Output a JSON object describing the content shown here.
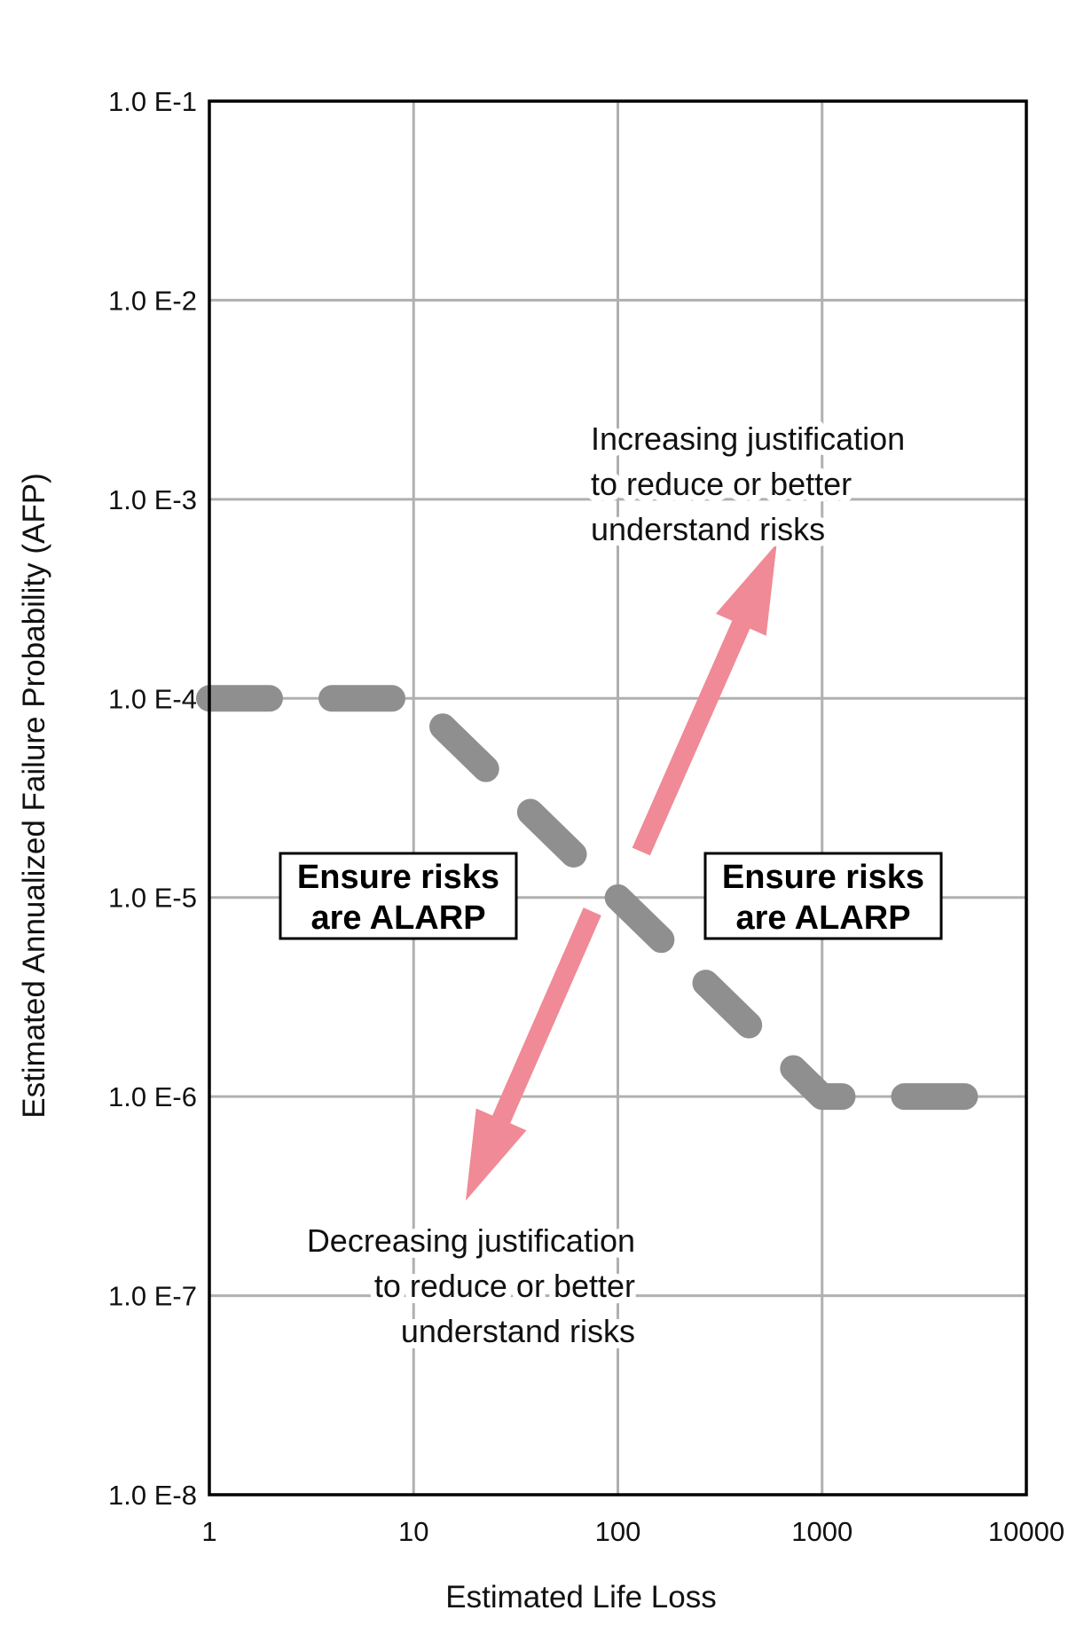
{
  "chart_data": {
    "type": "line",
    "x_scale": "log",
    "y_scale": "log",
    "xlabel": "Estimated Life Loss",
    "ylabel": "Estimated Annualized Failure Probability (AFP)",
    "xlim": [
      1,
      10000
    ],
    "ylim": [
      1e-08,
      0.1
    ],
    "x_ticks": [
      1,
      10,
      100,
      1000,
      10000
    ],
    "x_tick_labels": [
      "1",
      "10",
      "100",
      "1000",
      "10000"
    ],
    "y_ticks": [
      0.1,
      0.01,
      0.001,
      0.0001,
      1e-05,
      1e-06,
      1e-07,
      1e-08
    ],
    "y_tick_labels": [
      "1.0 E-1",
      "1.0 E-2",
      "1.0 E-3",
      "1.0 E-4",
      "1.0 E-5",
      "1.0 E-6",
      "1.0 E-7",
      "1.0 E-8"
    ],
    "grid": true,
    "series": [
      {
        "style": "dashed",
        "color": "#8f8f8f",
        "x": [
          1,
          10,
          1000,
          10000
        ],
        "y": [
          0.0001,
          0.0001,
          1e-06,
          1e-06
        ]
      }
    ],
    "arrows": [
      {
        "color": "#f08a96",
        "from": [
          130,
          1.7e-05
        ],
        "to": [
          600,
          0.0006
        ]
      },
      {
        "color": "#f08a96",
        "from": [
          75,
          8.5e-06
        ],
        "to": [
          18,
          3e-07
        ]
      }
    ],
    "annotations": [
      {
        "id": "increasing",
        "lines": [
          "Increasing justification",
          "to reduce or better",
          "understand risks"
        ]
      },
      {
        "id": "decreasing",
        "lines": [
          "Decreasing justification",
          "to reduce or better",
          "understand risks"
        ]
      }
    ],
    "boxes": [
      {
        "id": "left",
        "lines": [
          "Ensure risks",
          "are ALARP"
        ]
      },
      {
        "id": "right",
        "lines": [
          "Ensure risks",
          "are ALARP"
        ]
      }
    ]
  }
}
